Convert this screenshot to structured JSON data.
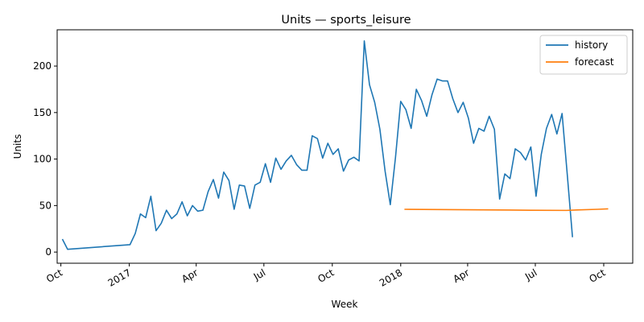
{
  "chart_data": {
    "type": "line",
    "title": "Units — sports_leisure",
    "xlabel": "Week",
    "ylabel": "Units",
    "xlim": [
      "2016-09-26",
      "2018-11-09"
    ],
    "ylim": [
      -12,
      239
    ],
    "y_ticks": [
      0,
      50,
      100,
      150,
      200
    ],
    "x_ticks": [
      {
        "date": "2016-10-01",
        "label": "Oct"
      },
      {
        "date": "2017-01-01",
        "label": "2017"
      },
      {
        "date": "2017-04-01",
        "label": "Apr"
      },
      {
        "date": "2017-07-01",
        "label": "Jul"
      },
      {
        "date": "2017-10-01",
        "label": "Oct"
      },
      {
        "date": "2018-01-01",
        "label": "2018"
      },
      {
        "date": "2018-04-01",
        "label": "Apr"
      },
      {
        "date": "2018-07-01",
        "label": "Jul"
      },
      {
        "date": "2018-10-01",
        "label": "Oct"
      }
    ],
    "grid": false,
    "legend": "top-right",
    "series": [
      {
        "name": "history",
        "color": "#1f77b4",
        "points": [
          [
            "2016-10-03",
            14
          ],
          [
            "2016-10-10",
            3
          ],
          [
            "2017-01-02",
            8
          ],
          [
            "2017-01-09",
            20
          ],
          [
            "2017-01-16",
            41
          ],
          [
            "2017-01-23",
            37
          ],
          [
            "2017-01-30",
            60
          ],
          [
            "2017-02-06",
            23
          ],
          [
            "2017-02-13",
            31
          ],
          [
            "2017-02-20",
            45
          ],
          [
            "2017-02-27",
            36
          ],
          [
            "2017-03-06",
            41
          ],
          [
            "2017-03-13",
            54
          ],
          [
            "2017-03-20",
            39
          ],
          [
            "2017-03-27",
            50
          ],
          [
            "2017-04-03",
            44
          ],
          [
            "2017-04-10",
            45
          ],
          [
            "2017-04-17",
            65
          ],
          [
            "2017-04-24",
            78
          ],
          [
            "2017-05-01",
            58
          ],
          [
            "2017-05-08",
            86
          ],
          [
            "2017-05-15",
            77
          ],
          [
            "2017-05-22",
            46
          ],
          [
            "2017-05-29",
            72
          ],
          [
            "2017-06-05",
            71
          ],
          [
            "2017-06-12",
            47
          ],
          [
            "2017-06-19",
            72
          ],
          [
            "2017-06-26",
            75
          ],
          [
            "2017-07-03",
            95
          ],
          [
            "2017-07-10",
            75
          ],
          [
            "2017-07-17",
            101
          ],
          [
            "2017-07-24",
            89
          ],
          [
            "2017-07-31",
            98
          ],
          [
            "2017-08-07",
            104
          ],
          [
            "2017-08-14",
            94
          ],
          [
            "2017-08-21",
            88
          ],
          [
            "2017-08-28",
            88
          ],
          [
            "2017-09-04",
            125
          ],
          [
            "2017-09-11",
            122
          ],
          [
            "2017-09-18",
            101
          ],
          [
            "2017-09-25",
            117
          ],
          [
            "2017-10-02",
            105
          ],
          [
            "2017-10-09",
            111
          ],
          [
            "2017-10-16",
            87
          ],
          [
            "2017-10-23",
            99
          ],
          [
            "2017-10-30",
            102
          ],
          [
            "2017-11-06",
            98
          ],
          [
            "2017-11-13",
            227
          ],
          [
            "2017-11-20",
            180
          ],
          [
            "2017-11-27",
            161
          ],
          [
            "2017-12-04",
            132
          ],
          [
            "2017-12-11",
            87
          ],
          [
            "2017-12-18",
            51
          ],
          [
            "2017-12-25",
            102
          ],
          [
            "2018-01-01",
            162
          ],
          [
            "2018-01-08",
            153
          ],
          [
            "2018-01-15",
            133
          ],
          [
            "2018-01-22",
            175
          ],
          [
            "2018-01-29",
            163
          ],
          [
            "2018-02-05",
            146
          ],
          [
            "2018-02-12",
            169
          ],
          [
            "2018-02-19",
            186
          ],
          [
            "2018-02-26",
            184
          ],
          [
            "2018-03-05",
            184
          ],
          [
            "2018-03-12",
            165
          ],
          [
            "2018-03-19",
            150
          ],
          [
            "2018-03-26",
            161
          ],
          [
            "2018-04-02",
            144
          ],
          [
            "2018-04-09",
            117
          ],
          [
            "2018-04-16",
            133
          ],
          [
            "2018-04-23",
            130
          ],
          [
            "2018-04-30",
            146
          ],
          [
            "2018-05-07",
            132
          ],
          [
            "2018-05-14",
            57
          ],
          [
            "2018-05-21",
            84
          ],
          [
            "2018-05-28",
            79
          ],
          [
            "2018-06-04",
            111
          ],
          [
            "2018-06-11",
            107
          ],
          [
            "2018-06-18",
            99
          ],
          [
            "2018-06-25",
            113
          ],
          [
            "2018-07-02",
            60
          ],
          [
            "2018-07-09",
            105
          ],
          [
            "2018-07-16",
            133
          ],
          [
            "2018-07-23",
            148
          ],
          [
            "2018-07-30",
            127
          ],
          [
            "2018-08-06",
            149
          ],
          [
            "2018-08-13",
            83
          ],
          [
            "2018-08-20",
            16
          ]
        ]
      },
      {
        "name": "forecast",
        "color": "#ff7f0e",
        "points": [
          [
            "2018-01-06",
            46
          ],
          [
            "2018-04-01",
            45.5
          ],
          [
            "2018-06-24",
            45
          ],
          [
            "2018-08-12",
            44.8
          ],
          [
            "2018-08-26",
            45.3
          ],
          [
            "2018-09-23",
            46
          ],
          [
            "2018-10-07",
            46.5
          ]
        ]
      }
    ]
  }
}
